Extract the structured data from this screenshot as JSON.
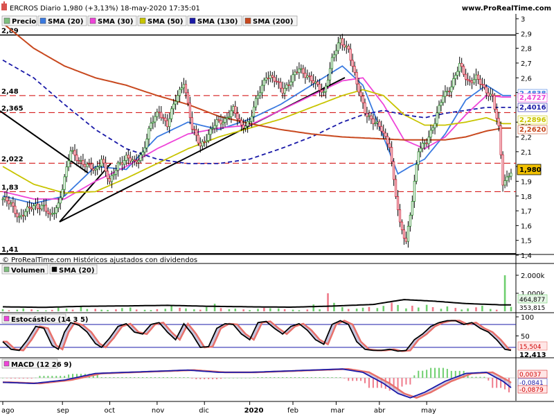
{
  "header": {
    "title": "ERCROS Diario 1,980 (+3,13%) 18-may-2020 17:35:01",
    "website": "www.ProRealTime.com"
  },
  "legend": [
    {
      "label": "Precio",
      "color": "#7fbf7f"
    },
    {
      "label": "SMA (20)",
      "color": "#3a7ae0"
    },
    {
      "label": "SMA (30)",
      "color": "#ee44d8"
    },
    {
      "label": "SMA (50)",
      "color": "#c8c400"
    },
    {
      "label": "SMA (130)",
      "color": "#1a1aa8"
    },
    {
      "label": "SMA (200)",
      "color": "#c8481e"
    }
  ],
  "copyright": "© ProRealTime.com Históricos ajustados con dividendos",
  "chart_data": [
    {
      "type": "candlestick",
      "title": "ERCROS Diario",
      "ylim": [
        1.4,
        3.0
      ],
      "y_ticks": [
        "3",
        "2,9",
        "2,8",
        "2,7",
        "2,6",
        "2,5",
        "2,4",
        "2,3",
        "2,2",
        "2,1",
        "2",
        "1,9",
        "1,8",
        "1,7",
        "1,6",
        "1,5",
        "1,4"
      ],
      "x_ticks": [
        "ago",
        "sep",
        "oct",
        "nov",
        "dic",
        "2020",
        "feb",
        "mar",
        "abr",
        "may"
      ],
      "horizontal_levels": [
        {
          "label": "2,89",
          "value": 2.89,
          "style": "solid"
        },
        {
          "label": "2,48",
          "value": 2.48,
          "style": "dashed"
        },
        {
          "label": "2,365",
          "value": 2.365,
          "style": "dashed"
        },
        {
          "label": "2,022",
          "value": 2.022,
          "style": "dashed"
        },
        {
          "label": "1,83",
          "value": 1.83,
          "style": "dashed"
        },
        {
          "label": "1,41",
          "value": 1.41,
          "style": "solid"
        }
      ],
      "price_anchors": [
        [
          0,
          1.78
        ],
        [
          4,
          1.74
        ],
        [
          8,
          1.66
        ],
        [
          12,
          1.7
        ],
        [
          16,
          1.74
        ],
        [
          20,
          1.73
        ],
        [
          23,
          1.65
        ],
        [
          27,
          1.75
        ],
        [
          30,
          1.92
        ],
        [
          33,
          2.1
        ],
        [
          37,
          2.05
        ],
        [
          41,
          2.0
        ],
        [
          45,
          1.97
        ],
        [
          48,
          2.06
        ],
        [
          52,
          1.88
        ],
        [
          56,
          2.02
        ],
        [
          60,
          2.06
        ],
        [
          64,
          2.02
        ],
        [
          68,
          2.1
        ],
        [
          72,
          2.28
        ],
        [
          76,
          2.38
        ],
        [
          80,
          2.28
        ],
        [
          84,
          2.45
        ],
        [
          88,
          2.58
        ],
        [
          92,
          2.25
        ],
        [
          96,
          2.15
        ],
        [
          100,
          2.21
        ],
        [
          104,
          2.3
        ],
        [
          108,
          2.32
        ],
        [
          112,
          2.38
        ],
        [
          116,
          2.28
        ],
        [
          120,
          2.3
        ],
        [
          124,
          2.48
        ],
        [
          128,
          2.62
        ],
        [
          132,
          2.58
        ],
        [
          136,
          2.52
        ],
        [
          140,
          2.58
        ],
        [
          144,
          2.66
        ],
        [
          148,
          2.62
        ],
        [
          152,
          2.55
        ],
        [
          156,
          2.5
        ],
        [
          160,
          2.72
        ],
        [
          164,
          2.85
        ],
        [
          168,
          2.8
        ],
        [
          172,
          2.55
        ],
        [
          176,
          2.38
        ],
        [
          180,
          2.3
        ],
        [
          184,
          2.25
        ],
        [
          188,
          2.15
        ],
        [
          190,
          1.9
        ],
        [
          193,
          1.6
        ],
        [
          196,
          1.5
        ],
        [
          199,
          1.78
        ],
        [
          202,
          2.1
        ],
        [
          206,
          2.18
        ],
        [
          210,
          2.3
        ],
        [
          214,
          2.48
        ],
        [
          218,
          2.55
        ],
        [
          222,
          2.68
        ],
        [
          226,
          2.58
        ],
        [
          230,
          2.6
        ],
        [
          234,
          2.52
        ],
        [
          238,
          2.48
        ],
        [
          241,
          2.25
        ],
        [
          243,
          1.88
        ],
        [
          245,
          1.92
        ],
        [
          247,
          1.98
        ]
      ],
      "series": [
        {
          "name": "SMA (20)",
          "last_value": "2,4838",
          "anchors": [
            [
              0,
              1.8
            ],
            [
              15,
              1.75
            ],
            [
              30,
              1.8
            ],
            [
              45,
              2.0
            ],
            [
              60,
              1.98
            ],
            [
              75,
              2.2
            ],
            [
              90,
              2.3
            ],
            [
              105,
              2.25
            ],
            [
              120,
              2.32
            ],
            [
              135,
              2.42
            ],
            [
              150,
              2.55
            ],
            [
              165,
              2.68
            ],
            [
              175,
              2.55
            ],
            [
              185,
              2.2
            ],
            [
              192,
              1.95
            ],
            [
              198,
              2.0
            ],
            [
              205,
              2.05
            ],
            [
              215,
              2.22
            ],
            [
              225,
              2.45
            ],
            [
              235,
              2.55
            ],
            [
              243,
              2.48
            ]
          ]
        },
        {
          "name": "SMA (30)",
          "last_value": "2,4727",
          "anchors": [
            [
              0,
              1.83
            ],
            [
              15,
              1.78
            ],
            [
              30,
              1.78
            ],
            [
              45,
              1.9
            ],
            [
              60,
              2.0
            ],
            [
              75,
              2.12
            ],
            [
              90,
              2.22
            ],
            [
              105,
              2.26
            ],
            [
              120,
              2.28
            ],
            [
              135,
              2.38
            ],
            [
              150,
              2.48
            ],
            [
              165,
              2.58
            ],
            [
              175,
              2.6
            ],
            [
              185,
              2.42
            ],
            [
              195,
              2.18
            ],
            [
              205,
              2.12
            ],
            [
              215,
              2.2
            ],
            [
              225,
              2.35
            ],
            [
              235,
              2.48
            ],
            [
              243,
              2.47
            ]
          ]
        },
        {
          "name": "SMA (50)",
          "last_value": "2,2896",
          "anchors": [
            [
              0,
              2.0
            ],
            [
              15,
              1.88
            ],
            [
              30,
              1.82
            ],
            [
              45,
              1.83
            ],
            [
              60,
              1.92
            ],
            [
              75,
              2.02
            ],
            [
              90,
              2.12
            ],
            [
              105,
              2.2
            ],
            [
              120,
              2.26
            ],
            [
              135,
              2.32
            ],
            [
              150,
              2.4
            ],
            [
              165,
              2.48
            ],
            [
              175,
              2.52
            ],
            [
              185,
              2.48
            ],
            [
              195,
              2.35
            ],
            [
              205,
              2.28
            ],
            [
              215,
              2.28
            ],
            [
              225,
              2.3
            ],
            [
              235,
              2.33
            ],
            [
              243,
              2.29
            ]
          ]
        },
        {
          "name": "SMA (130)",
          "last_value": "2,4016",
          "anchors": [
            [
              0,
              2.72
            ],
            [
              15,
              2.6
            ],
            [
              30,
              2.42
            ],
            [
              45,
              2.25
            ],
            [
              60,
              2.12
            ],
            [
              75,
              2.05
            ],
            [
              90,
              2.02
            ],
            [
              105,
              2.02
            ],
            [
              120,
              2.05
            ],
            [
              135,
              2.12
            ],
            [
              150,
              2.2
            ],
            [
              165,
              2.3
            ],
            [
              175,
              2.35
            ],
            [
              185,
              2.38
            ],
            [
              195,
              2.35
            ],
            [
              205,
              2.33
            ],
            [
              215,
              2.36
            ],
            [
              225,
              2.38
            ],
            [
              235,
              2.4
            ],
            [
              243,
              2.4
            ]
          ]
        },
        {
          "name": "SMA (200)",
          "last_value": "2,2620",
          "anchors": [
            [
              0,
              2.97
            ],
            [
              15,
              2.8
            ],
            [
              30,
              2.68
            ],
            [
              45,
              2.6
            ],
            [
              60,
              2.55
            ],
            [
              75,
              2.48
            ],
            [
              90,
              2.42
            ],
            [
              105,
              2.34
            ],
            [
              120,
              2.29
            ],
            [
              135,
              2.25
            ],
            [
              150,
              2.22
            ],
            [
              165,
              2.2
            ],
            [
              180,
              2.19
            ],
            [
              195,
              2.18
            ],
            [
              205,
              2.18
            ],
            [
              215,
              2.18
            ],
            [
              225,
              2.2
            ],
            [
              235,
              2.24
            ],
            [
              243,
              2.26
            ]
          ]
        }
      ],
      "last_price": "1,980"
    },
    {
      "type": "bar",
      "title": "Volumen",
      "series_labels": [
        "Volumen",
        "SMA (20)"
      ],
      "y_ticks": [
        "2.000k",
        "1.000k"
      ],
      "values_k": [
        120,
        60,
        90,
        160,
        110,
        70,
        50,
        80,
        200,
        150,
        95,
        260,
        130,
        140,
        90,
        75,
        110,
        180,
        210,
        100,
        85,
        70,
        120,
        140,
        330,
        200,
        160,
        110,
        90,
        230,
        420,
        180,
        120,
        150,
        110,
        70,
        140,
        190,
        170,
        160,
        120,
        90,
        60,
        100,
        380,
        110,
        1000,
        470,
        230,
        130,
        150,
        200,
        240,
        180,
        300,
        480,
        350,
        160,
        310,
        210,
        360,
        230,
        140,
        270,
        190,
        100,
        160,
        220,
        310,
        130,
        90,
        2000,
        250
      ],
      "sma_anchors": [
        [
          0,
          250
        ],
        [
          20,
          220
        ],
        [
          40,
          280
        ],
        [
          60,
          300
        ],
        [
          80,
          330
        ],
        [
          100,
          280
        ],
        [
          120,
          250
        ],
        [
          140,
          230
        ],
        [
          160,
          290
        ],
        [
          180,
          380
        ],
        [
          195,
          650
        ],
        [
          210,
          560
        ],
        [
          225,
          430
        ],
        [
          243,
          355
        ]
      ],
      "labels": [
        "464,877",
        "353,815"
      ]
    },
    {
      "type": "line",
      "title": "Estocástico (14 3 5)",
      "ylim": [
        0,
        100
      ],
      "y_ticks": [
        "100",
        "50"
      ],
      "reference_levels": [
        80,
        20
      ],
      "labels": [
        "15,504",
        "12,413"
      ],
      "k_anchors": [
        [
          0,
          35
        ],
        [
          4,
          15
        ],
        [
          8,
          12
        ],
        [
          12,
          40
        ],
        [
          16,
          75
        ],
        [
          20,
          70
        ],
        [
          24,
          25
        ],
        [
          27,
          15
        ],
        [
          30,
          60
        ],
        [
          33,
          85
        ],
        [
          37,
          78
        ],
        [
          41,
          60
        ],
        [
          45,
          30
        ],
        [
          48,
          20
        ],
        [
          52,
          45
        ],
        [
          56,
          75
        ],
        [
          60,
          82
        ],
        [
          64,
          60
        ],
        [
          68,
          55
        ],
        [
          72,
          80
        ],
        [
          76,
          85
        ],
        [
          80,
          60
        ],
        [
          84,
          40
        ],
        [
          88,
          82
        ],
        [
          92,
          55
        ],
        [
          96,
          20
        ],
        [
          100,
          22
        ],
        [
          104,
          70
        ],
        [
          108,
          82
        ],
        [
          112,
          80
        ],
        [
          116,
          55
        ],
        [
          120,
          40
        ],
        [
          124,
          85
        ],
        [
          128,
          88
        ],
        [
          132,
          70
        ],
        [
          136,
          55
        ],
        [
          140,
          75
        ],
        [
          144,
          82
        ],
        [
          148,
          65
        ],
        [
          152,
          40
        ],
        [
          156,
          28
        ],
        [
          160,
          80
        ],
        [
          164,
          90
        ],
        [
          168,
          80
        ],
        [
          172,
          35
        ],
        [
          176,
          15
        ],
        [
          180,
          12
        ],
        [
          184,
          12
        ],
        [
          188,
          15
        ],
        [
          192,
          10
        ],
        [
          196,
          12
        ],
        [
          200,
          40
        ],
        [
          204,
          55
        ],
        [
          208,
          75
        ],
        [
          212,
          85
        ],
        [
          216,
          90
        ],
        [
          220,
          90
        ],
        [
          224,
          80
        ],
        [
          228,
          85
        ],
        [
          232,
          70
        ],
        [
          236,
          60
        ],
        [
          240,
          40
        ],
        [
          244,
          15
        ],
        [
          247,
          12
        ]
      ],
      "d_lag": 2
    },
    {
      "type": "line+bar",
      "title": "MACD (12 26 9)",
      "labels": [
        "0,0037",
        "-0,0841",
        "-0,0879"
      ],
      "macd_anchors": [
        [
          0,
          -0.04
        ],
        [
          15,
          -0.05
        ],
        [
          30,
          -0.02
        ],
        [
          45,
          0.04
        ],
        [
          60,
          0.05
        ],
        [
          75,
          0.06
        ],
        [
          90,
          0.07
        ],
        [
          105,
          0.05
        ],
        [
          120,
          0.05
        ],
        [
          135,
          0.06
        ],
        [
          150,
          0.07
        ],
        [
          165,
          0.08
        ],
        [
          175,
          0.05
        ],
        [
          185,
          -0.05
        ],
        [
          192,
          -0.14
        ],
        [
          198,
          -0.18
        ],
        [
          205,
          -0.13
        ],
        [
          215,
          -0.03
        ],
        [
          225,
          0.04
        ],
        [
          235,
          0.05
        ],
        [
          243,
          -0.03
        ],
        [
          247,
          -0.088
        ]
      ],
      "signal_lag": 3
    }
  ],
  "date_axis": [
    "ago",
    "sep",
    "oct",
    "nov",
    "dic",
    "2020",
    "feb",
    "mar",
    "abr",
    "may"
  ]
}
